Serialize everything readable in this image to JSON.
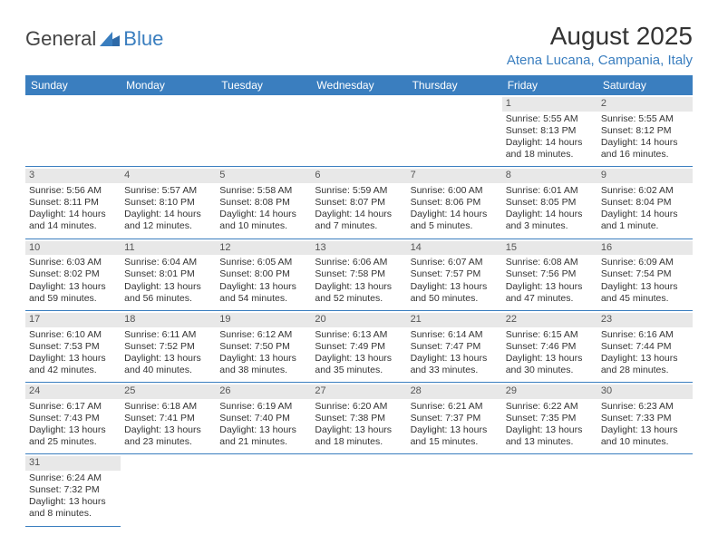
{
  "logo": {
    "text1": "General",
    "text2": "Blue"
  },
  "title": "August 2025",
  "location": "Atena Lucana, Campania, Italy",
  "colors": {
    "brand": "#3a7ebf",
    "header_bg": "#3a7ebf",
    "header_text": "#ffffff",
    "daynum_bg": "#e8e8e8",
    "text": "#333333",
    "border": "#3a7ebf"
  },
  "weekdays": [
    "Sunday",
    "Monday",
    "Tuesday",
    "Wednesday",
    "Thursday",
    "Friday",
    "Saturday"
  ],
  "weeks": [
    [
      null,
      null,
      null,
      null,
      null,
      {
        "n": "1",
        "sr": "5:55 AM",
        "ss": "8:13 PM",
        "dl": "14 hours and 18 minutes."
      },
      {
        "n": "2",
        "sr": "5:55 AM",
        "ss": "8:12 PM",
        "dl": "14 hours and 16 minutes."
      }
    ],
    [
      {
        "n": "3",
        "sr": "5:56 AM",
        "ss": "8:11 PM",
        "dl": "14 hours and 14 minutes."
      },
      {
        "n": "4",
        "sr": "5:57 AM",
        "ss": "8:10 PM",
        "dl": "14 hours and 12 minutes."
      },
      {
        "n": "5",
        "sr": "5:58 AM",
        "ss": "8:08 PM",
        "dl": "14 hours and 10 minutes."
      },
      {
        "n": "6",
        "sr": "5:59 AM",
        "ss": "8:07 PM",
        "dl": "14 hours and 7 minutes."
      },
      {
        "n": "7",
        "sr": "6:00 AM",
        "ss": "8:06 PM",
        "dl": "14 hours and 5 minutes."
      },
      {
        "n": "8",
        "sr": "6:01 AM",
        "ss": "8:05 PM",
        "dl": "14 hours and 3 minutes."
      },
      {
        "n": "9",
        "sr": "6:02 AM",
        "ss": "8:04 PM",
        "dl": "14 hours and 1 minute."
      }
    ],
    [
      {
        "n": "10",
        "sr": "6:03 AM",
        "ss": "8:02 PM",
        "dl": "13 hours and 59 minutes."
      },
      {
        "n": "11",
        "sr": "6:04 AM",
        "ss": "8:01 PM",
        "dl": "13 hours and 56 minutes."
      },
      {
        "n": "12",
        "sr": "6:05 AM",
        "ss": "8:00 PM",
        "dl": "13 hours and 54 minutes."
      },
      {
        "n": "13",
        "sr": "6:06 AM",
        "ss": "7:58 PM",
        "dl": "13 hours and 52 minutes."
      },
      {
        "n": "14",
        "sr": "6:07 AM",
        "ss": "7:57 PM",
        "dl": "13 hours and 50 minutes."
      },
      {
        "n": "15",
        "sr": "6:08 AM",
        "ss": "7:56 PM",
        "dl": "13 hours and 47 minutes."
      },
      {
        "n": "16",
        "sr": "6:09 AM",
        "ss": "7:54 PM",
        "dl": "13 hours and 45 minutes."
      }
    ],
    [
      {
        "n": "17",
        "sr": "6:10 AM",
        "ss": "7:53 PM",
        "dl": "13 hours and 42 minutes."
      },
      {
        "n": "18",
        "sr": "6:11 AM",
        "ss": "7:52 PM",
        "dl": "13 hours and 40 minutes."
      },
      {
        "n": "19",
        "sr": "6:12 AM",
        "ss": "7:50 PM",
        "dl": "13 hours and 38 minutes."
      },
      {
        "n": "20",
        "sr": "6:13 AM",
        "ss": "7:49 PM",
        "dl": "13 hours and 35 minutes."
      },
      {
        "n": "21",
        "sr": "6:14 AM",
        "ss": "7:47 PM",
        "dl": "13 hours and 33 minutes."
      },
      {
        "n": "22",
        "sr": "6:15 AM",
        "ss": "7:46 PM",
        "dl": "13 hours and 30 minutes."
      },
      {
        "n": "23",
        "sr": "6:16 AM",
        "ss": "7:44 PM",
        "dl": "13 hours and 28 minutes."
      }
    ],
    [
      {
        "n": "24",
        "sr": "6:17 AM",
        "ss": "7:43 PM",
        "dl": "13 hours and 25 minutes."
      },
      {
        "n": "25",
        "sr": "6:18 AM",
        "ss": "7:41 PM",
        "dl": "13 hours and 23 minutes."
      },
      {
        "n": "26",
        "sr": "6:19 AM",
        "ss": "7:40 PM",
        "dl": "13 hours and 21 minutes."
      },
      {
        "n": "27",
        "sr": "6:20 AM",
        "ss": "7:38 PM",
        "dl": "13 hours and 18 minutes."
      },
      {
        "n": "28",
        "sr": "6:21 AM",
        "ss": "7:37 PM",
        "dl": "13 hours and 15 minutes."
      },
      {
        "n": "29",
        "sr": "6:22 AM",
        "ss": "7:35 PM",
        "dl": "13 hours and 13 minutes."
      },
      {
        "n": "30",
        "sr": "6:23 AM",
        "ss": "7:33 PM",
        "dl": "13 hours and 10 minutes."
      }
    ],
    [
      {
        "n": "31",
        "sr": "6:24 AM",
        "ss": "7:32 PM",
        "dl": "13 hours and 8 minutes."
      },
      null,
      null,
      null,
      null,
      null,
      null
    ]
  ],
  "labels": {
    "sunrise": "Sunrise:",
    "sunset": "Sunset:",
    "daylight": "Daylight:"
  }
}
